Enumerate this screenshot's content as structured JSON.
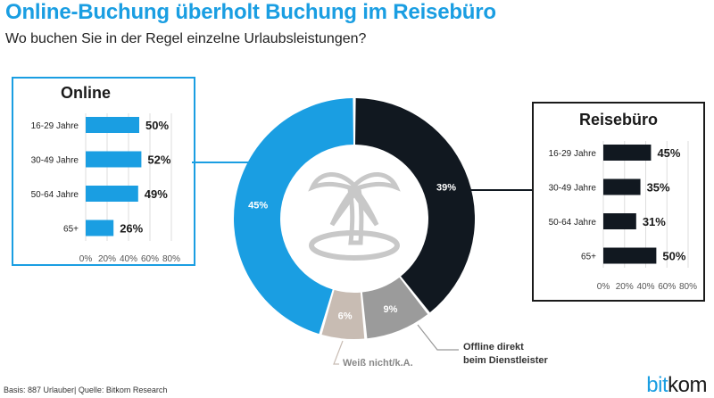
{
  "header": {
    "title": "Online-Buchung überholt Buchung im Reisebüro",
    "subtitle": "Wo buchen Sie in der Regel einzelne Urlaubsleistungen?"
  },
  "footer": {
    "source": "Basis: 887 Urlauber| Quelle: Bitkom Research",
    "logo_a": "bit",
    "logo_b": "kom"
  },
  "callouts": {
    "offline_line1": "Offline direkt",
    "offline_line2": "beim Dienstleister",
    "weiss": "Weiß nicht/k.A."
  },
  "colors": {
    "online": "#1a9ee2",
    "reisebuero": "#111820",
    "offline": "#9b9b9b",
    "weiss": "#c8bcb3"
  },
  "chart_data": [
    {
      "type": "pie",
      "variant": "donut",
      "categories": [
        "Reisebüro",
        "Offline direkt beim Dienstleister",
        "Weiß nicht/k.A.",
        "Online"
      ],
      "values": [
        39,
        9,
        6,
        45
      ],
      "labels": [
        "39%",
        "9%",
        "6%",
        "45%"
      ],
      "center_icon": "palm-island-icon"
    },
    {
      "type": "bar",
      "orientation": "horizontal",
      "title": "Online",
      "categories": [
        "16-29 Jahre",
        "30-49 Jahre",
        "50-64 Jahre",
        "65+"
      ],
      "values": [
        50,
        52,
        49,
        26
      ],
      "labels": [
        "50%",
        "52%",
        "49%",
        "26%"
      ],
      "xlim": [
        0,
        80
      ],
      "ticks": [
        "0%",
        "20%",
        "40%",
        "60%",
        "80%"
      ],
      "grid": true
    },
    {
      "type": "bar",
      "orientation": "horizontal",
      "title": "Reisebüro",
      "categories": [
        "16-29 Jahre",
        "30-49 Jahre",
        "50-64 Jahre",
        "65+"
      ],
      "values": [
        45,
        35,
        31,
        50
      ],
      "labels": [
        "45%",
        "35%",
        "31%",
        "50%"
      ],
      "xlim": [
        0,
        80
      ],
      "ticks": [
        "0%",
        "20%",
        "40%",
        "60%",
        "80%"
      ],
      "grid": true
    }
  ]
}
